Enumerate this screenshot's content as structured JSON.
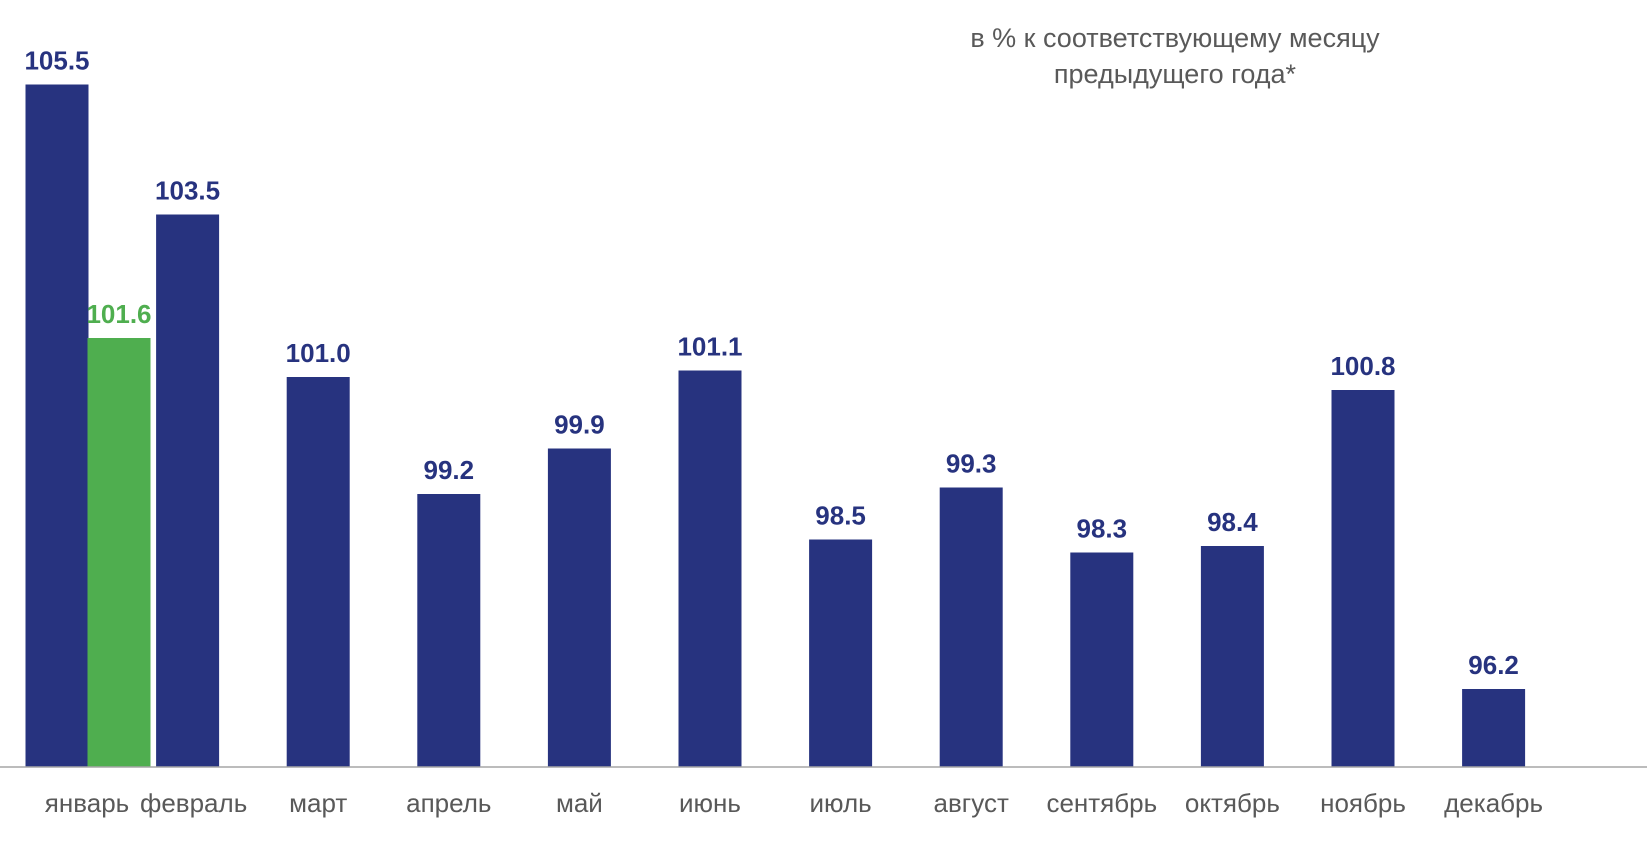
{
  "chart_data": {
    "type": "bar",
    "note": [
      "в % к соответствующему месяцу",
      "предыдущего года*"
    ],
    "categories": [
      "январь",
      "февраль",
      "март",
      "апрель",
      "май",
      "июнь",
      "июль",
      "август",
      "сентябрь",
      "октябрь",
      "ноябрь",
      "декабрь"
    ],
    "series": [
      {
        "color": "#27337F",
        "values": [
          105.5,
          103.5,
          101.0,
          99.2,
          99.9,
          101.1,
          98.5,
          99.3,
          98.3,
          98.4,
          100.8,
          96.2
        ],
        "labels": [
          "105.5",
          "103.5",
          "101.0",
          "99.2",
          "99.9",
          "101.1",
          "98.5",
          "99.3",
          "98.3",
          "98.4",
          "100.8",
          "96.2"
        ]
      },
      {
        "color": "#4FAE4F",
        "values": [
          101.6,
          null,
          null,
          null,
          null,
          null,
          null,
          null,
          null,
          null,
          null,
          null
        ],
        "labels": [
          "101.6",
          "",
          "",
          "",
          "",
          "",
          "",
          "",
          "",
          "",
          "",
          ""
        ]
      }
    ],
    "ylim": [
      95.0,
      106.0
    ],
    "grid": false,
    "legend": "none",
    "xlabel": "",
    "ylabel": "",
    "axis_color": "#A6A6A6"
  }
}
